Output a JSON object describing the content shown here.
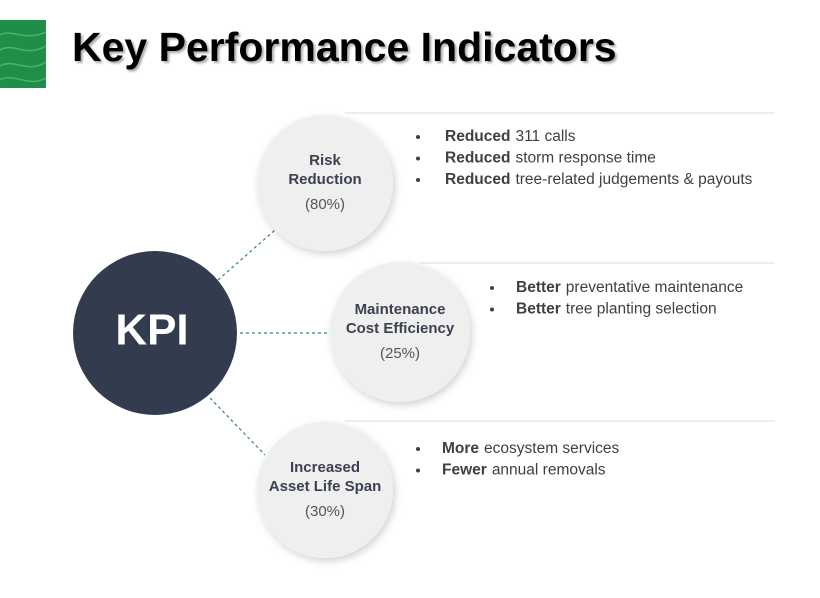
{
  "header": {
    "title": "Key Performance Indicators"
  },
  "center": {
    "label": "KPI"
  },
  "nodes": [
    {
      "label": [
        "Risk",
        "Reduction"
      ],
      "share": "(80%)",
      "bullets": [
        {
          "bold": "Reduced",
          "text": "311 calls"
        },
        {
          "bold": "Reduced",
          "text": "storm response time"
        },
        {
          "bold": "Reduced",
          "text": "tree-related judgements & payouts"
        }
      ]
    },
    {
      "label": [
        "Maintenance",
        "Cost Efficiency"
      ],
      "share": "(25%)",
      "bullets": [
        {
          "bold": "Better",
          "text": "preventative maintenance"
        },
        {
          "bold": "Better",
          "text": "tree planting selection"
        }
      ]
    },
    {
      "label": [
        "Increased",
        "Asset Life Span"
      ],
      "share": "(30%)",
      "bullets": [
        {
          "bold": "More",
          "text": "ecosystem services"
        },
        {
          "bold": "Fewer",
          "text": "annual removals"
        }
      ]
    }
  ]
}
